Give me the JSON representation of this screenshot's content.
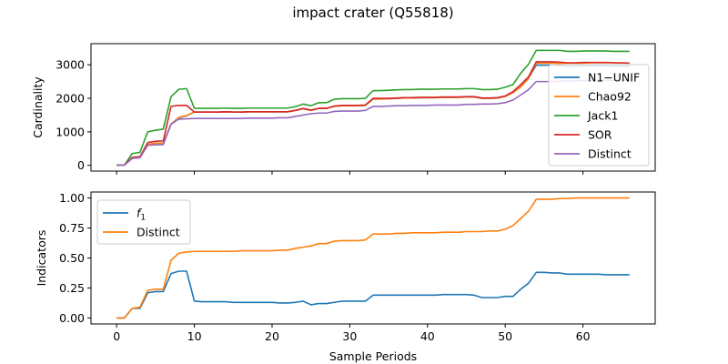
{
  "title": "impact crater (Q55818)",
  "colors": {
    "N1-UNIF": "#1f77b4",
    "Chao92": "#ff7f0e",
    "Jack1": "#2ca02c",
    "SOR": "#d62728",
    "Distinct": "#9467bd",
    "f1": "#1f77b4",
    "distinct_ind": "#ff7f0e"
  },
  "chart_data": [
    {
      "type": "line",
      "ylabel": "Cardinality",
      "xlabel": "",
      "xlim": [
        -3.3,
        69.3
      ],
      "ylim": [
        -170,
        3630
      ],
      "xticks": [
        0,
        10,
        20,
        30,
        40,
        50,
        60
      ],
      "yticks": [
        0,
        1000,
        2000,
        3000
      ],
      "show_x_tick_labels": false,
      "legend": "right",
      "series": [
        {
          "name": "N1−UNIF",
          "key": "N1-UNIF",
          "x": [
            0,
            1,
            2,
            3,
            4,
            5,
            6,
            7,
            8,
            9,
            10,
            11,
            12,
            13,
            14,
            15,
            16,
            17,
            18,
            19,
            20,
            21,
            22,
            23,
            24,
            25,
            26,
            27,
            28,
            29,
            30,
            31,
            32,
            33,
            34,
            35,
            36,
            37,
            38,
            39,
            40,
            41,
            42,
            43,
            44,
            45,
            46,
            47,
            48,
            49,
            50,
            51,
            52,
            53,
            54,
            55,
            56,
            57,
            58,
            59,
            60,
            61,
            62,
            63,
            64,
            65,
            66
          ],
          "y": [
            10,
            10,
            210,
            230,
            620,
            660,
            660,
            1230,
            1420,
            1480,
            1590,
            1590,
            1590,
            1590,
            1600,
            1590,
            1590,
            1600,
            1600,
            1600,
            1600,
            1600,
            1600,
            1640,
            1690,
            1640,
            1700,
            1700,
            1760,
            1780,
            1780,
            1780,
            1790,
            1980,
            1980,
            1990,
            2000,
            2010,
            2010,
            2020,
            2020,
            2020,
            2030,
            2030,
            2030,
            2040,
            2040,
            2000,
            2000,
            2010,
            2060,
            2170,
            2340,
            2600,
            2990,
            2990,
            2990,
            2980,
            2960,
            2960,
            2970,
            2970,
            2970,
            2970,
            2960,
            2960,
            2950
          ]
        },
        {
          "name": "Chao92",
          "key": "Chao92",
          "x": [
            0,
            1,
            2,
            3,
            4,
            5,
            6,
            7,
            8,
            9,
            10,
            11,
            12,
            13,
            14,
            15,
            16,
            17,
            18,
            19,
            20,
            21,
            22,
            23,
            24,
            25,
            26,
            27,
            28,
            29,
            30,
            31,
            32,
            33,
            34,
            35,
            36,
            37,
            38,
            39,
            40,
            41,
            42,
            43,
            44,
            45,
            46,
            47,
            48,
            49,
            50,
            51,
            52,
            53,
            54,
            55,
            56,
            57,
            58,
            59,
            60,
            61,
            62,
            63,
            64,
            65,
            66
          ],
          "y": [
            10,
            10,
            210,
            230,
            620,
            660,
            660,
            1230,
            1430,
            1490,
            1590,
            1590,
            1590,
            1590,
            1600,
            1590,
            1590,
            1600,
            1600,
            1600,
            1600,
            1600,
            1600,
            1640,
            1690,
            1640,
            1700,
            1700,
            1760,
            1780,
            1780,
            1780,
            1790,
            1980,
            1980,
            1990,
            2000,
            2010,
            2010,
            2020,
            2020,
            2020,
            2030,
            2030,
            2030,
            2040,
            2040,
            2000,
            2000,
            2010,
            2060,
            2170,
            2340,
            2600,
            3050,
            3050,
            3050,
            3040,
            3050,
            3050,
            3050,
            3060,
            3060,
            3060,
            3060,
            3050,
            3050
          ]
        },
        {
          "name": "Jack1",
          "key": "Jack1",
          "x": [
            0,
            1,
            2,
            3,
            4,
            5,
            6,
            7,
            8,
            9,
            10,
            11,
            12,
            13,
            14,
            15,
            16,
            17,
            18,
            19,
            20,
            21,
            22,
            23,
            24,
            25,
            26,
            27,
            28,
            29,
            30,
            31,
            32,
            33,
            34,
            35,
            36,
            37,
            38,
            39,
            40,
            41,
            42,
            43,
            44,
            45,
            46,
            47,
            48,
            49,
            50,
            51,
            52,
            53,
            54,
            55,
            56,
            57,
            58,
            59,
            60,
            61,
            62,
            63,
            64,
            65,
            66
          ],
          "y": [
            10,
            10,
            350,
            390,
            1000,
            1050,
            1080,
            2050,
            2270,
            2290,
            1700,
            1700,
            1700,
            1700,
            1710,
            1700,
            1700,
            1710,
            1710,
            1710,
            1710,
            1710,
            1710,
            1750,
            1830,
            1780,
            1870,
            1870,
            1970,
            1990,
            1990,
            1990,
            2000,
            2230,
            2230,
            2240,
            2250,
            2260,
            2260,
            2270,
            2270,
            2270,
            2280,
            2280,
            2280,
            2290,
            2290,
            2260,
            2260,
            2270,
            2330,
            2410,
            2750,
            3020,
            3430,
            3430,
            3430,
            3430,
            3400,
            3400,
            3410,
            3410,
            3410,
            3410,
            3400,
            3400,
            3400
          ]
        },
        {
          "name": "SOR",
          "key": "SOR",
          "x": [
            0,
            1,
            2,
            3,
            4,
            5,
            6,
            7,
            8,
            9,
            10,
            11,
            12,
            13,
            14,
            15,
            16,
            17,
            18,
            19,
            20,
            21,
            22,
            23,
            24,
            25,
            26,
            27,
            28,
            29,
            30,
            31,
            32,
            33,
            34,
            35,
            36,
            37,
            38,
            39,
            40,
            41,
            42,
            43,
            44,
            45,
            46,
            47,
            48,
            49,
            50,
            51,
            52,
            53,
            54,
            55,
            56,
            57,
            58,
            59,
            60,
            61,
            62,
            63,
            64,
            65,
            66
          ],
          "y": [
            10,
            10,
            240,
            260,
            680,
            720,
            730,
            1760,
            1790,
            1790,
            1590,
            1590,
            1590,
            1590,
            1600,
            1590,
            1590,
            1600,
            1600,
            1600,
            1600,
            1600,
            1600,
            1640,
            1700,
            1650,
            1700,
            1700,
            1770,
            1790,
            1790,
            1790,
            1800,
            2000,
            2000,
            2000,
            2010,
            2020,
            2020,
            2030,
            2030,
            2030,
            2040,
            2040,
            2040,
            2050,
            2050,
            2010,
            2010,
            2020,
            2070,
            2200,
            2410,
            2640,
            3090,
            3090,
            3090,
            3080,
            3060,
            3060,
            3070,
            3070,
            3070,
            3070,
            3060,
            3060,
            3050
          ]
        },
        {
          "name": "Distinct",
          "key": "Distinct",
          "x": [
            0,
            1,
            2,
            3,
            4,
            5,
            6,
            7,
            8,
            9,
            10,
            11,
            12,
            13,
            14,
            15,
            16,
            17,
            18,
            19,
            20,
            21,
            22,
            23,
            24,
            25,
            26,
            27,
            28,
            29,
            30,
            31,
            32,
            33,
            34,
            35,
            36,
            37,
            38,
            39,
            40,
            41,
            42,
            43,
            44,
            45,
            46,
            47,
            48,
            49,
            50,
            51,
            52,
            53,
            54,
            55,
            56,
            57,
            58,
            59,
            60,
            61,
            62,
            63,
            64,
            65,
            66
          ],
          "y": [
            10,
            10,
            210,
            230,
            600,
            610,
            620,
            1230,
            1380,
            1390,
            1400,
            1400,
            1400,
            1400,
            1400,
            1400,
            1400,
            1410,
            1410,
            1410,
            1410,
            1420,
            1420,
            1460,
            1500,
            1540,
            1560,
            1560,
            1610,
            1620,
            1620,
            1620,
            1640,
            1760,
            1760,
            1770,
            1780,
            1780,
            1790,
            1790,
            1790,
            1800,
            1800,
            1800,
            1800,
            1820,
            1820,
            1830,
            1830,
            1840,
            1870,
            1950,
            2100,
            2260,
            2500,
            2500,
            2500,
            2510,
            2520,
            2520,
            2530,
            2530,
            2540,
            2540,
            2540,
            2540,
            2540
          ]
        }
      ]
    },
    {
      "type": "line",
      "ylabel": "Indicators",
      "xlabel": "Sample Periods",
      "xlim": [
        -3.3,
        69.3
      ],
      "ylim": [
        -0.05,
        1.05
      ],
      "xticks": [
        0,
        10,
        20,
        30,
        40,
        50,
        60
      ],
      "yticks": [
        0.0,
        0.25,
        0.5,
        0.75,
        1.0
      ],
      "ytick_labels": [
        "0.00",
        "0.25",
        "0.50",
        "0.75",
        "1.00"
      ],
      "show_x_tick_labels": true,
      "legend": "upper-left",
      "series": [
        {
          "name": "f1",
          "key": "f1",
          "x": [
            0,
            1,
            2,
            3,
            4,
            5,
            6,
            7,
            8,
            9,
            10,
            11,
            12,
            13,
            14,
            15,
            16,
            17,
            18,
            19,
            20,
            21,
            22,
            23,
            24,
            25,
            26,
            27,
            28,
            29,
            30,
            31,
            32,
            33,
            34,
            35,
            36,
            37,
            38,
            39,
            40,
            41,
            42,
            43,
            44,
            45,
            46,
            47,
            48,
            49,
            50,
            51,
            52,
            53,
            54,
            55,
            56,
            57,
            58,
            59,
            60,
            61,
            62,
            63,
            64,
            65,
            66
          ],
          "y": [
            0.0,
            0.0,
            0.08,
            0.08,
            0.21,
            0.22,
            0.22,
            0.37,
            0.39,
            0.39,
            0.14,
            0.135,
            0.135,
            0.135,
            0.135,
            0.13,
            0.13,
            0.13,
            0.13,
            0.13,
            0.13,
            0.125,
            0.125,
            0.13,
            0.14,
            0.11,
            0.12,
            0.12,
            0.13,
            0.14,
            0.14,
            0.14,
            0.14,
            0.19,
            0.19,
            0.19,
            0.19,
            0.19,
            0.19,
            0.19,
            0.19,
            0.19,
            0.195,
            0.195,
            0.195,
            0.195,
            0.19,
            0.17,
            0.17,
            0.17,
            0.18,
            0.18,
            0.24,
            0.29,
            0.38,
            0.38,
            0.375,
            0.375,
            0.365,
            0.365,
            0.365,
            0.365,
            0.365,
            0.36,
            0.36,
            0.36,
            0.36
          ]
        },
        {
          "name": "Distinct",
          "key": "distinct_ind",
          "x": [
            0,
            1,
            2,
            3,
            4,
            5,
            6,
            7,
            8,
            9,
            10,
            11,
            12,
            13,
            14,
            15,
            16,
            17,
            18,
            19,
            20,
            21,
            22,
            23,
            24,
            25,
            26,
            27,
            28,
            29,
            30,
            31,
            32,
            33,
            34,
            35,
            36,
            37,
            38,
            39,
            40,
            41,
            42,
            43,
            44,
            45,
            46,
            47,
            48,
            49,
            50,
            51,
            52,
            53,
            54,
            55,
            56,
            57,
            58,
            59,
            60,
            61,
            62,
            63,
            64,
            65,
            66
          ],
          "y": [
            0.0,
            0.0,
            0.08,
            0.09,
            0.23,
            0.24,
            0.24,
            0.48,
            0.54,
            0.55,
            0.555,
            0.555,
            0.555,
            0.555,
            0.555,
            0.555,
            0.56,
            0.56,
            0.56,
            0.56,
            0.56,
            0.565,
            0.565,
            0.58,
            0.59,
            0.6,
            0.62,
            0.62,
            0.64,
            0.645,
            0.645,
            0.645,
            0.65,
            0.7,
            0.7,
            0.7,
            0.705,
            0.705,
            0.71,
            0.71,
            0.71,
            0.71,
            0.715,
            0.715,
            0.715,
            0.72,
            0.72,
            0.72,
            0.725,
            0.725,
            0.74,
            0.77,
            0.83,
            0.89,
            0.99,
            0.99,
            0.99,
            0.995,
            0.995,
            1.0,
            1.0,
            1.0,
            1.0,
            1.0,
            1.0,
            1.0,
            1.0
          ]
        }
      ]
    }
  ]
}
